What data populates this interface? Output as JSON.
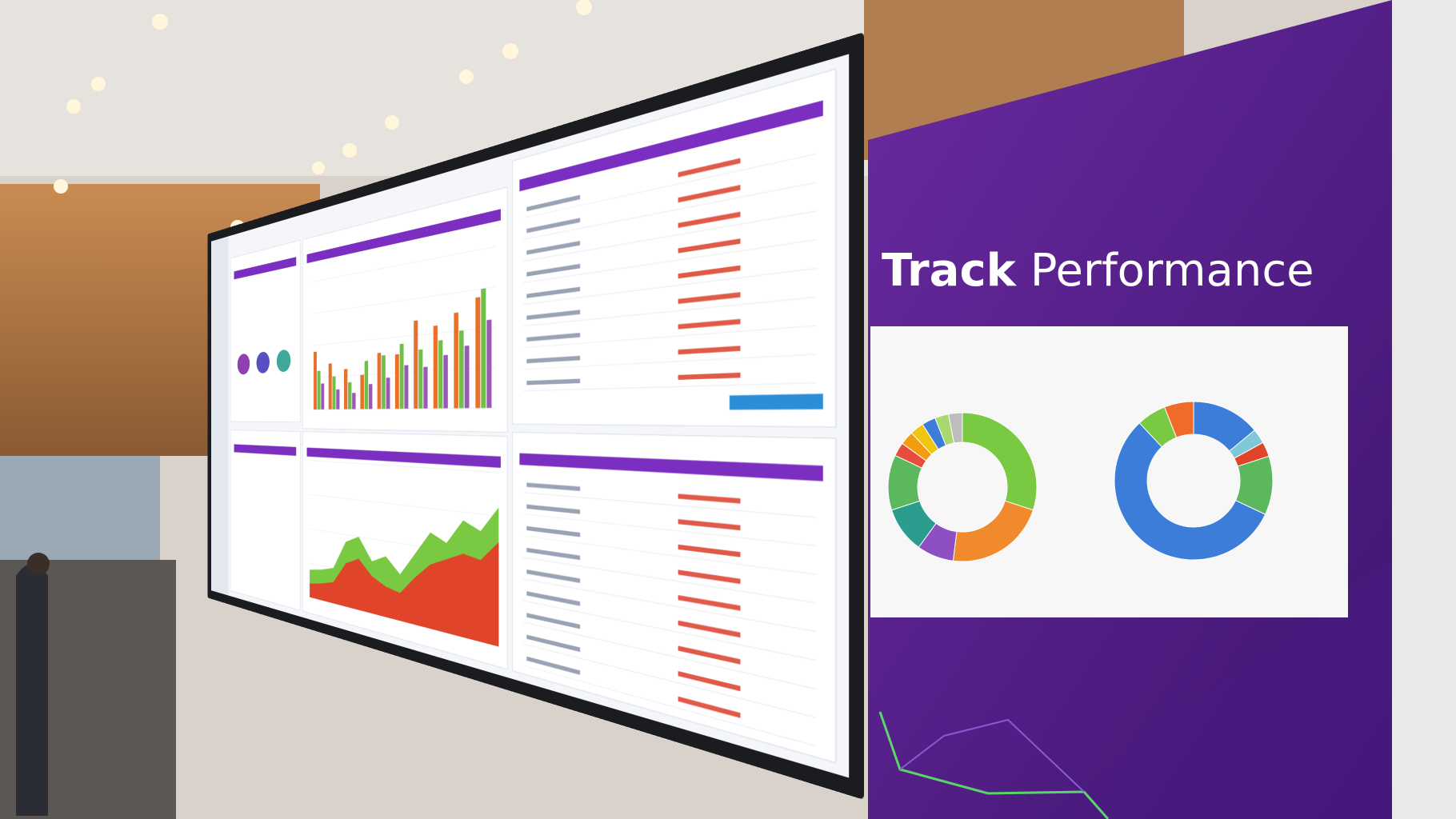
{
  "banner": {
    "title_bold": "Track",
    "title_rest": "Performance"
  },
  "chart_data": [
    {
      "type": "bar",
      "ylim": [
        0,
        100
      ],
      "grid": true,
      "series": [
        {
          "color": "#e8702a",
          "values": [
            45,
            35,
            30,
            25,
            40,
            38,
            60,
            55,
            62,
            70
          ]
        },
        {
          "color": "#6fbf4a",
          "values": [
            30,
            25,
            20,
            35,
            38,
            45,
            40,
            45,
            50,
            75
          ]
        },
        {
          "color": "#9b59b6",
          "values": [
            20,
            15,
            12,
            18,
            22,
            30,
            28,
            35,
            40,
            55
          ]
        }
      ]
    },
    {
      "type": "area",
      "ylim": [
        0,
        100
      ],
      "grid": true,
      "series": [
        {
          "color": "#7ac943",
          "values": [
            20,
            22,
            25,
            45,
            50,
            35,
            40,
            30,
            45,
            60,
            55,
            70,
            65,
            80
          ]
        },
        {
          "color": "#e0452a",
          "values": [
            10,
            12,
            15,
            30,
            35,
            25,
            20,
            18,
            30,
            40,
            45,
            50,
            48,
            60
          ]
        }
      ]
    },
    {
      "type": "donut",
      "values": [
        30,
        22,
        8,
        10,
        12,
        3,
        3,
        3,
        3,
        3,
        3
      ],
      "colors": [
        "#7ac943",
        "#f08a2c",
        "#8e4fc2",
        "#2a9d8f",
        "#5cb85c",
        "#e74c3c",
        "#f39c12",
        "#f1c40f",
        "#3b7dd8",
        "#a8d86e",
        "#bdbdbd"
      ]
    },
    {
      "type": "donut",
      "values": [
        14,
        3,
        3,
        12,
        56,
        6,
        6
      ],
      "colors": [
        "#3b7dd8",
        "#7fc8d8",
        "#e0452a",
        "#5cb85c",
        "#3b7dd8",
        "#7ac943",
        "#f06a28"
      ]
    }
  ]
}
